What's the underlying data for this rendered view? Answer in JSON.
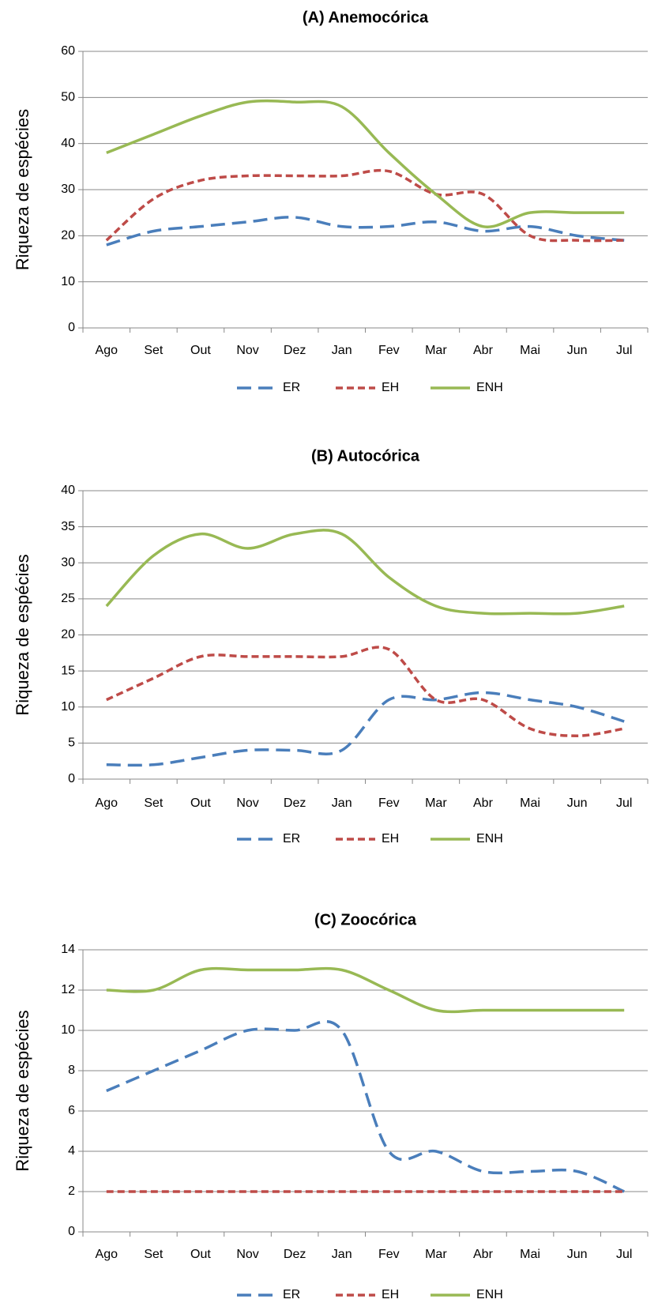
{
  "chart_data": [
    {
      "type": "line",
      "title": "(A) Anemocórica",
      "y_label": "Riqueza de espécies",
      "categories": [
        "Ago",
        "Set",
        "Out",
        "Nov",
        "Dez",
        "Jan",
        "Fev",
        "Mar",
        "Abr",
        "Mai",
        "Jun",
        "Jul"
      ],
      "ylim": [
        0,
        60
      ],
      "yticks": [
        0,
        10,
        20,
        30,
        40,
        50,
        60
      ],
      "grid": true,
      "legend": "bottom",
      "series": [
        {
          "name": "ER",
          "color": "#4a7ebb",
          "dash": "long",
          "values": [
            18,
            21,
            22,
            23,
            24,
            22,
            22,
            23,
            21,
            22,
            20,
            19
          ]
        },
        {
          "name": "EH",
          "color": "#be4b48",
          "dash": "short",
          "values": [
            19,
            28,
            32,
            33,
            33,
            33,
            34,
            29,
            29,
            20,
            19,
            19
          ]
        },
        {
          "name": "ENH",
          "color": "#98b954",
          "dash": "solid",
          "values": [
            38,
            42,
            46,
            49,
            49,
            48,
            38,
            29,
            22,
            25,
            25,
            25
          ]
        }
      ]
    },
    {
      "type": "line",
      "title": "(B) Autocórica",
      "y_label": "Riqueza de espécies",
      "categories": [
        "Ago",
        "Set",
        "Out",
        "Nov",
        "Dez",
        "Jan",
        "Fev",
        "Mar",
        "Abr",
        "Mai",
        "Jun",
        "Jul"
      ],
      "ylim": [
        0,
        40
      ],
      "yticks": [
        0,
        5,
        10,
        15,
        20,
        25,
        30,
        35,
        40
      ],
      "grid": true,
      "legend": "bottom",
      "series": [
        {
          "name": "ER",
          "color": "#4a7ebb",
          "dash": "long",
          "values": [
            2,
            2,
            3,
            4,
            4,
            4,
            11,
            11,
            12,
            11,
            10,
            8
          ]
        },
        {
          "name": "EH",
          "color": "#be4b48",
          "dash": "short",
          "values": [
            11,
            14,
            17,
            17,
            17,
            17,
            18,
            11,
            11,
            7,
            6,
            7
          ]
        },
        {
          "name": "ENH",
          "color": "#98b954",
          "dash": "solid",
          "values": [
            24,
            31,
            34,
            32,
            34,
            34,
            28,
            24,
            23,
            23,
            23,
            24
          ]
        }
      ]
    },
    {
      "type": "line",
      "title": "(C) Zoocórica",
      "y_label": "Riqueza de espécies",
      "categories": [
        "Ago",
        "Set",
        "Out",
        "Nov",
        "Dez",
        "Jan",
        "Fev",
        "Mar",
        "Abr",
        "Mai",
        "Jun",
        "Jul"
      ],
      "ylim": [
        0,
        14
      ],
      "yticks": [
        0,
        2,
        4,
        6,
        8,
        10,
        12,
        14
      ],
      "grid": true,
      "legend": "bottom",
      "series": [
        {
          "name": "ER",
          "color": "#4a7ebb",
          "dash": "long",
          "values": [
            7,
            8,
            9,
            10,
            10,
            10,
            4,
            4,
            3,
            3,
            3,
            2
          ]
        },
        {
          "name": "EH",
          "color": "#be4b48",
          "dash": "short",
          "values": [
            2,
            2,
            2,
            2,
            2,
            2,
            2,
            2,
            2,
            2,
            2,
            2
          ]
        },
        {
          "name": "ENH",
          "color": "#98b954",
          "dash": "solid",
          "values": [
            12,
            12,
            13,
            13,
            13,
            13,
            12,
            11,
            11,
            11,
            11,
            11
          ]
        }
      ]
    }
  ]
}
